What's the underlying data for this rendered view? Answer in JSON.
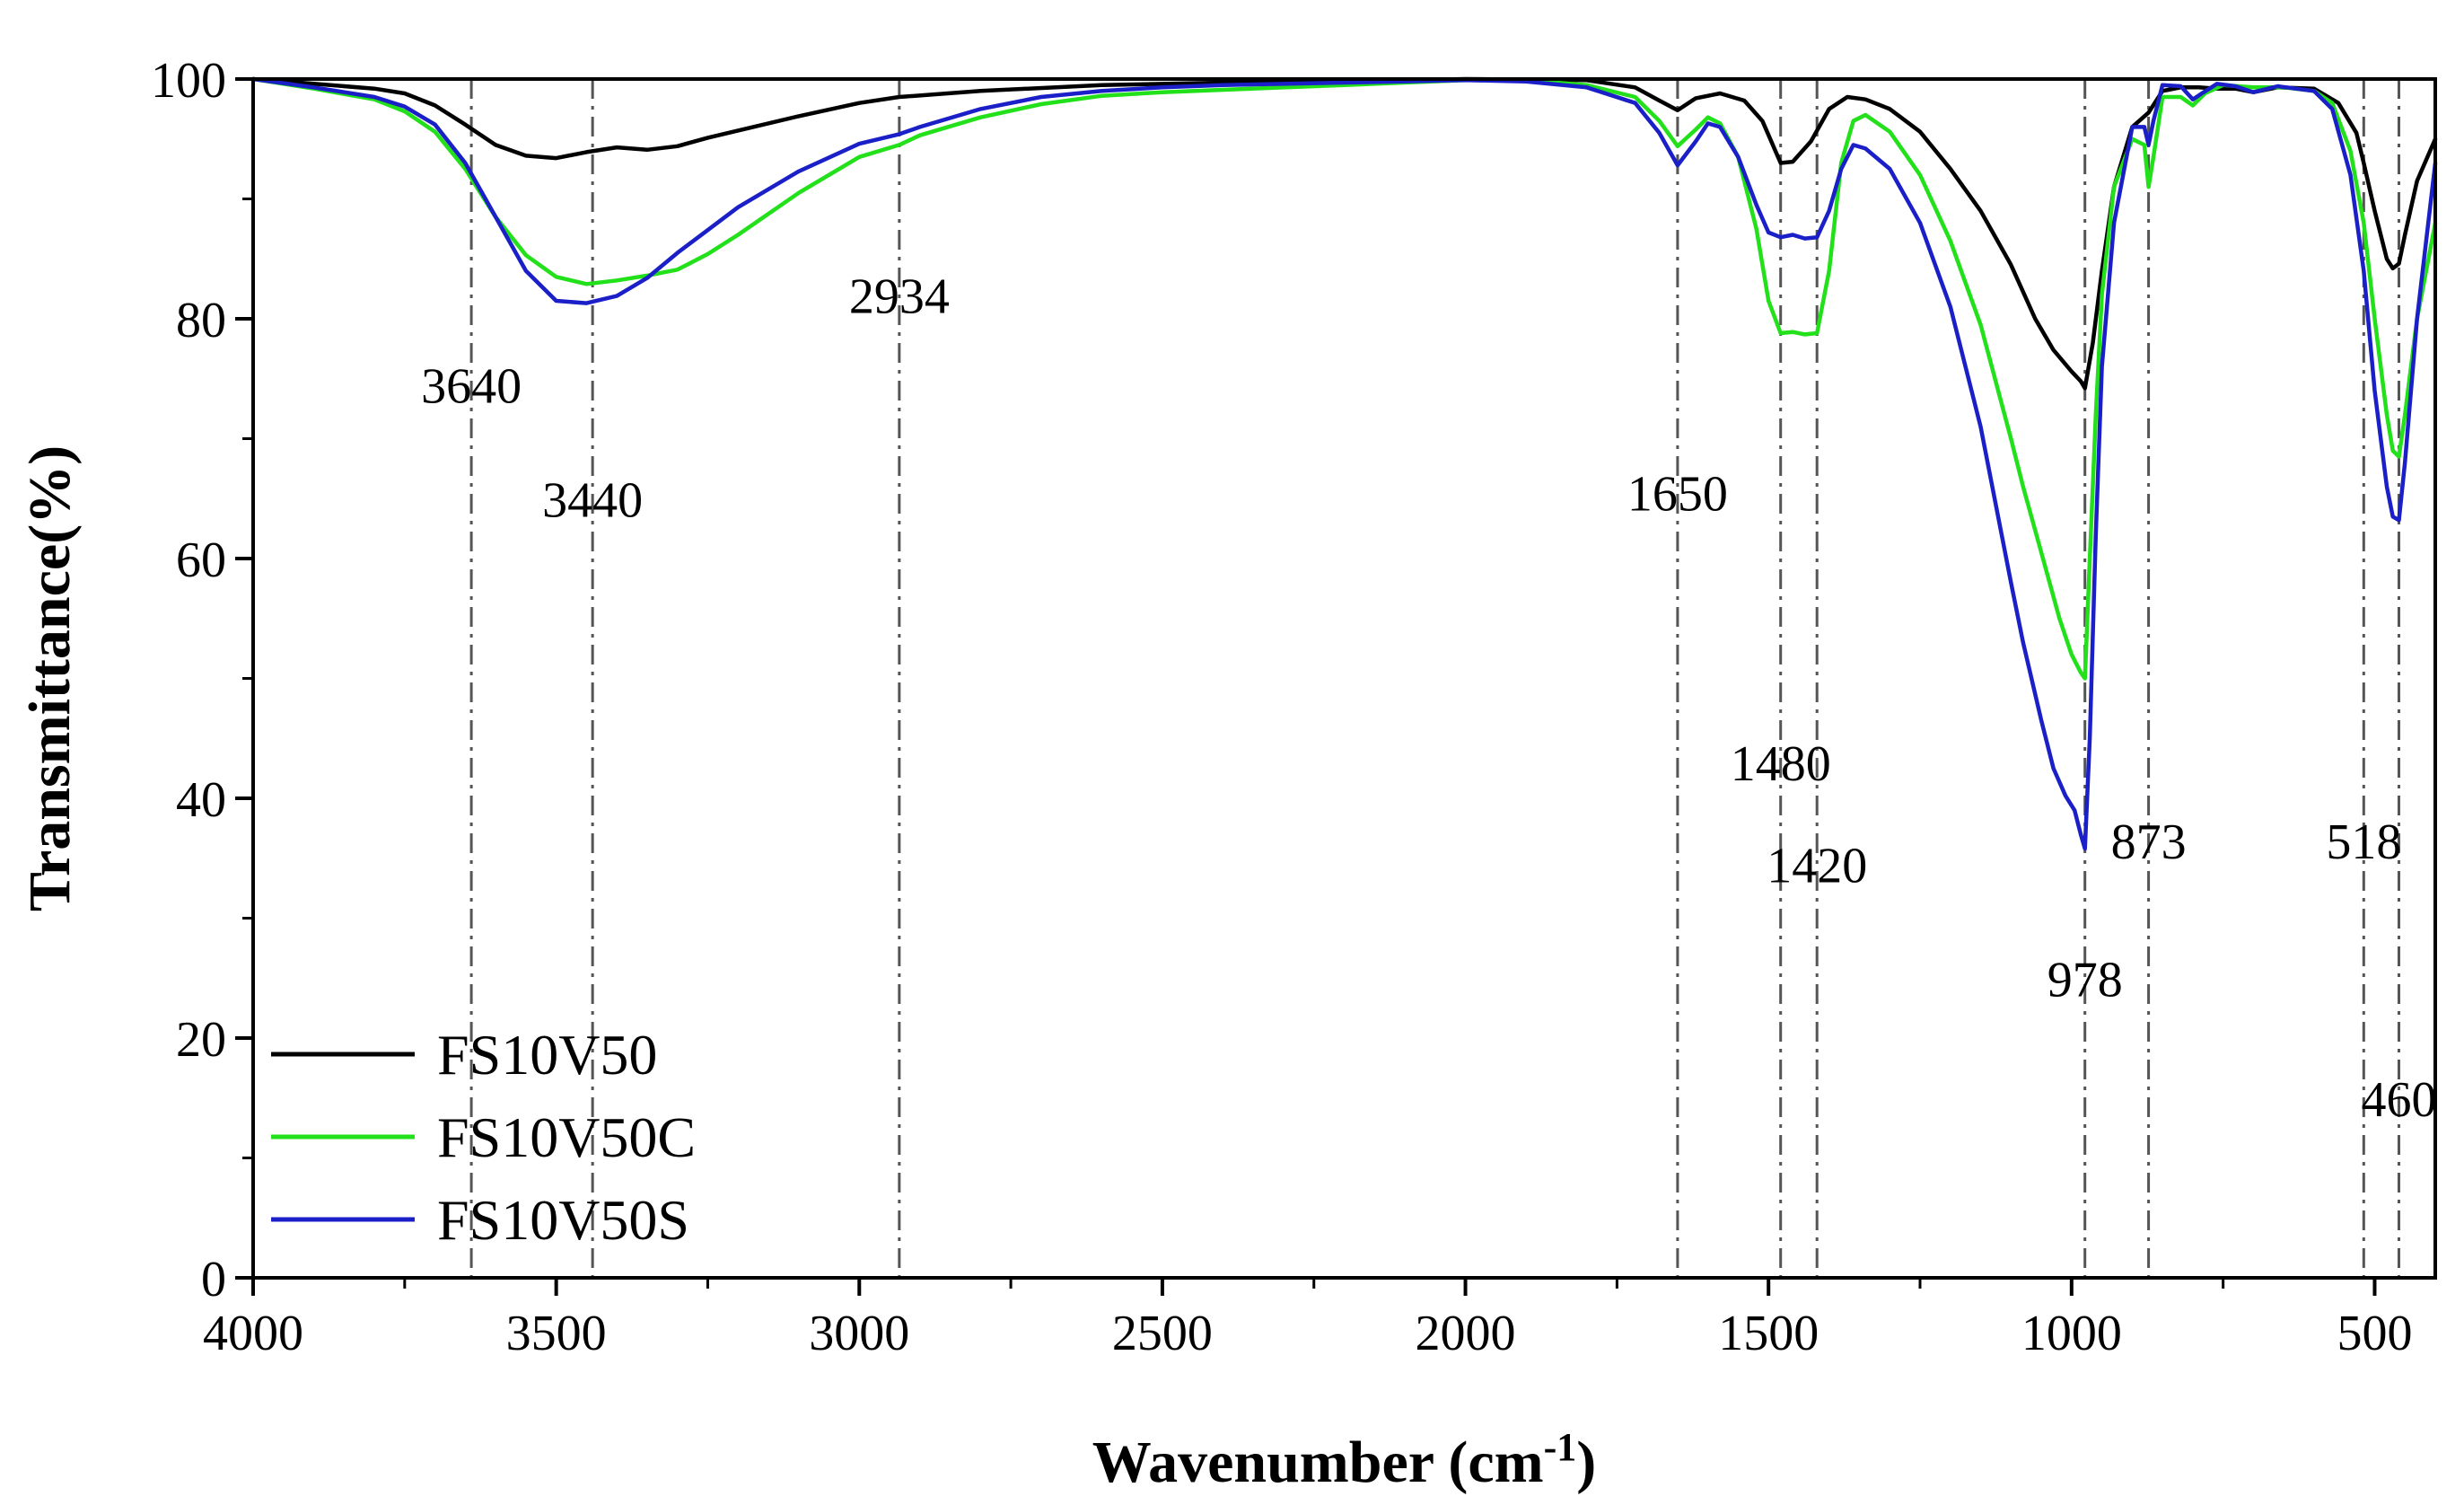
{
  "chart_data": {
    "type": "line",
    "xlabel": "Wavenumber (cm",
    "xlabel_sup": "-1",
    "xlabel_suffix": ")",
    "ylabel": "Transmittance(%)",
    "xlim": [
      4000,
      400
    ],
    "ylim": [
      0,
      100
    ],
    "x_ticks": [
      4000,
      3500,
      3000,
      2500,
      2000,
      1500,
      1000,
      500
    ],
    "y_ticks": [
      0,
      20,
      40,
      60,
      80,
      100
    ],
    "x_tick_labels": [
      "4000",
      "3500",
      "3000",
      "2500",
      "2000",
      "1500",
      "1000",
      "500"
    ],
    "y_tick_labels": [
      "0",
      "20",
      "40",
      "60",
      "80",
      "100"
    ],
    "legend_position": "bottom-left",
    "series": [
      {
        "name": "FS10V50",
        "color": "#000000",
        "points": [
          [
            4000,
            100
          ],
          [
            3900,
            99.6
          ],
          [
            3800,
            99.2
          ],
          [
            3750,
            98.8
          ],
          [
            3700,
            97.8
          ],
          [
            3650,
            96.2
          ],
          [
            3600,
            94.5
          ],
          [
            3550,
            93.6
          ],
          [
            3500,
            93.4
          ],
          [
            3450,
            93.9
          ],
          [
            3400,
            94.3
          ],
          [
            3350,
            94.1
          ],
          [
            3300,
            94.4
          ],
          [
            3250,
            95.1
          ],
          [
            3200,
            95.7
          ],
          [
            3100,
            96.9
          ],
          [
            3000,
            98.0
          ],
          [
            2934,
            98.5
          ],
          [
            2800,
            99.0
          ],
          [
            2600,
            99.5
          ],
          [
            2400,
            99.7
          ],
          [
            2200,
            99.8
          ],
          [
            2000,
            100
          ],
          [
            1800,
            99.9
          ],
          [
            1720,
            99.3
          ],
          [
            1680,
            98.2
          ],
          [
            1650,
            97.4
          ],
          [
            1620,
            98.4
          ],
          [
            1580,
            98.8
          ],
          [
            1540,
            98.2
          ],
          [
            1510,
            96.5
          ],
          [
            1480,
            93.0
          ],
          [
            1460,
            93.1
          ],
          [
            1430,
            94.8
          ],
          [
            1400,
            97.5
          ],
          [
            1370,
            98.5
          ],
          [
            1340,
            98.3
          ],
          [
            1300,
            97.5
          ],
          [
            1250,
            95.6
          ],
          [
            1200,
            92.5
          ],
          [
            1150,
            89.0
          ],
          [
            1100,
            84.5
          ],
          [
            1060,
            80.0
          ],
          [
            1030,
            77.4
          ],
          [
            1000,
            75.6
          ],
          [
            985,
            74.8
          ],
          [
            978,
            74.2
          ],
          [
            965,
            78.0
          ],
          [
            950,
            84.0
          ],
          [
            930,
            91.0
          ],
          [
            900,
            96.0
          ],
          [
            873,
            97.2
          ],
          [
            850,
            99.0
          ],
          [
            820,
            99.3
          ],
          [
            790,
            99.3
          ],
          [
            760,
            99.2
          ],
          [
            730,
            99.2
          ],
          [
            700,
            98.9
          ],
          [
            660,
            99.3
          ],
          [
            600,
            99.2
          ],
          [
            560,
            98.0
          ],
          [
            530,
            95.5
          ],
          [
            518,
            93.0
          ],
          [
            500,
            89.0
          ],
          [
            480,
            85.0
          ],
          [
            470,
            84.2
          ],
          [
            460,
            84.6
          ],
          [
            450,
            87.0
          ],
          [
            430,
            91.5
          ],
          [
            400,
            95.0
          ]
        ]
      },
      {
        "name": "FS10V50C",
        "color": "#22e01a",
        "points": [
          [
            4000,
            100
          ],
          [
            3900,
            99.2
          ],
          [
            3800,
            98.3
          ],
          [
            3750,
            97.3
          ],
          [
            3700,
            95.6
          ],
          [
            3650,
            92.5
          ],
          [
            3600,
            88.5
          ],
          [
            3550,
            85.3
          ],
          [
            3500,
            83.5
          ],
          [
            3450,
            82.9
          ],
          [
            3400,
            83.2
          ],
          [
            3350,
            83.6
          ],
          [
            3300,
            84.1
          ],
          [
            3250,
            85.4
          ],
          [
            3200,
            87.0
          ],
          [
            3100,
            90.5
          ],
          [
            3000,
            93.5
          ],
          [
            2934,
            94.5
          ],
          [
            2900,
            95.3
          ],
          [
            2800,
            96.8
          ],
          [
            2700,
            97.9
          ],
          [
            2600,
            98.6
          ],
          [
            2500,
            98.9
          ],
          [
            2400,
            99.1
          ],
          [
            2200,
            99.5
          ],
          [
            2000,
            99.9
          ],
          [
            1900,
            99.9
          ],
          [
            1800,
            99.5
          ],
          [
            1720,
            98.5
          ],
          [
            1680,
            96.5
          ],
          [
            1650,
            94.4
          ],
          [
            1620,
            95.8
          ],
          [
            1600,
            96.8
          ],
          [
            1580,
            96.3
          ],
          [
            1550,
            93.5
          ],
          [
            1520,
            87.5
          ],
          [
            1500,
            81.5
          ],
          [
            1480,
            78.8
          ],
          [
            1460,
            78.9
          ],
          [
            1440,
            78.7
          ],
          [
            1420,
            78.8
          ],
          [
            1400,
            84.0
          ],
          [
            1380,
            93.0
          ],
          [
            1360,
            96.5
          ],
          [
            1340,
            97.0
          ],
          [
            1300,
            95.6
          ],
          [
            1250,
            92.0
          ],
          [
            1200,
            86.5
          ],
          [
            1150,
            79.5
          ],
          [
            1100,
            70.0
          ],
          [
            1080,
            66.0
          ],
          [
            1050,
            60.5
          ],
          [
            1020,
            55.0
          ],
          [
            1000,
            52.0
          ],
          [
            985,
            50.5
          ],
          [
            978,
            50.0
          ],
          [
            970,
            60.0
          ],
          [
            960,
            72.0
          ],
          [
            950,
            82.0
          ],
          [
            930,
            91.0
          ],
          [
            900,
            95.0
          ],
          [
            880,
            94.5
          ],
          [
            873,
            91.0
          ],
          [
            865,
            93.5
          ],
          [
            850,
            98.5
          ],
          [
            820,
            98.5
          ],
          [
            800,
            97.8
          ],
          [
            780,
            98.8
          ],
          [
            750,
            99.5
          ],
          [
            700,
            99.3
          ],
          [
            650,
            99.3
          ],
          [
            600,
            99.0
          ],
          [
            570,
            98.0
          ],
          [
            540,
            94.0
          ],
          [
            518,
            88.0
          ],
          [
            500,
            80.0
          ],
          [
            480,
            72.0
          ],
          [
            470,
            69.0
          ],
          [
            460,
            68.5
          ],
          [
            450,
            72.0
          ],
          [
            430,
            80.0
          ],
          [
            400,
            88.0
          ]
        ]
      },
      {
        "name": "FS10V50S",
        "color": "#1a1fc8",
        "points": [
          [
            4000,
            100
          ],
          [
            3900,
            99.3
          ],
          [
            3800,
            98.5
          ],
          [
            3750,
            97.7
          ],
          [
            3700,
            96.2
          ],
          [
            3650,
            93.0
          ],
          [
            3600,
            88.5
          ],
          [
            3550,
            84.0
          ],
          [
            3500,
            81.5
          ],
          [
            3450,
            81.3
          ],
          [
            3400,
            81.9
          ],
          [
            3350,
            83.4
          ],
          [
            3300,
            85.5
          ],
          [
            3250,
            87.4
          ],
          [
            3200,
            89.3
          ],
          [
            3100,
            92.3
          ],
          [
            3000,
            94.6
          ],
          [
            2934,
            95.4
          ],
          [
            2900,
            96.0
          ],
          [
            2800,
            97.5
          ],
          [
            2700,
            98.5
          ],
          [
            2600,
            99.0
          ],
          [
            2500,
            99.3
          ],
          [
            2400,
            99.5
          ],
          [
            2200,
            99.7
          ],
          [
            2000,
            99.9
          ],
          [
            1900,
            99.8
          ],
          [
            1800,
            99.3
          ],
          [
            1720,
            98.0
          ],
          [
            1680,
            95.5
          ],
          [
            1650,
            92.8
          ],
          [
            1620,
            94.8
          ],
          [
            1600,
            96.3
          ],
          [
            1580,
            96.0
          ],
          [
            1550,
            93.5
          ],
          [
            1520,
            89.5
          ],
          [
            1500,
            87.2
          ],
          [
            1480,
            86.8
          ],
          [
            1460,
            87.0
          ],
          [
            1440,
            86.7
          ],
          [
            1420,
            86.8
          ],
          [
            1400,
            89.0
          ],
          [
            1380,
            92.5
          ],
          [
            1360,
            94.5
          ],
          [
            1340,
            94.2
          ],
          [
            1300,
            92.5
          ],
          [
            1250,
            88.0
          ],
          [
            1200,
            81.0
          ],
          [
            1150,
            71.0
          ],
          [
            1100,
            58.0
          ],
          [
            1080,
            53.0
          ],
          [
            1050,
            46.5
          ],
          [
            1030,
            42.5
          ],
          [
            1010,
            40.2
          ],
          [
            995,
            39.0
          ],
          [
            985,
            37.0
          ],
          [
            978,
            35.8
          ],
          [
            970,
            45.0
          ],
          [
            960,
            62.0
          ],
          [
            950,
            76.0
          ],
          [
            930,
            88.0
          ],
          [
            900,
            96.0
          ],
          [
            880,
            96.0
          ],
          [
            873,
            94.5
          ],
          [
            865,
            96.5
          ],
          [
            850,
            99.5
          ],
          [
            820,
            99.4
          ],
          [
            800,
            98.3
          ],
          [
            785,
            98.8
          ],
          [
            760,
            99.6
          ],
          [
            730,
            99.4
          ],
          [
            700,
            98.9
          ],
          [
            660,
            99.4
          ],
          [
            600,
            99.0
          ],
          [
            570,
            97.5
          ],
          [
            540,
            92.0
          ],
          [
            518,
            84.0
          ],
          [
            500,
            74.0
          ],
          [
            480,
            66.0
          ],
          [
            470,
            63.5
          ],
          [
            460,
            63.2
          ],
          [
            450,
            68.0
          ],
          [
            430,
            80.0
          ],
          [
            400,
            93.0
          ]
        ]
      }
    ],
    "annotations": [
      {
        "label": "3640",
        "x": 3640,
        "y": 73.0
      },
      {
        "label": "3440",
        "x": 3440,
        "y": 63.5
      },
      {
        "label": "2934",
        "x": 2934,
        "y": 80.5
      },
      {
        "label": "1650",
        "x": 1650,
        "y": 64.0
      },
      {
        "label": "1480",
        "x": 1480,
        "y": 41.5
      },
      {
        "label": "1420",
        "x": 1420,
        "y": 33.0
      },
      {
        "label": "978",
        "x": 978,
        "y": 23.5
      },
      {
        "label": "873",
        "x": 873,
        "y": 35.0
      },
      {
        "label": "518",
        "x": 518,
        "y": 35.0
      },
      {
        "label": "460",
        "x": 460,
        "y": 13.5
      }
    ],
    "reference_lines": [
      3640,
      3440,
      2934,
      1650,
      1480,
      1420,
      978,
      873,
      518,
      460
    ]
  }
}
